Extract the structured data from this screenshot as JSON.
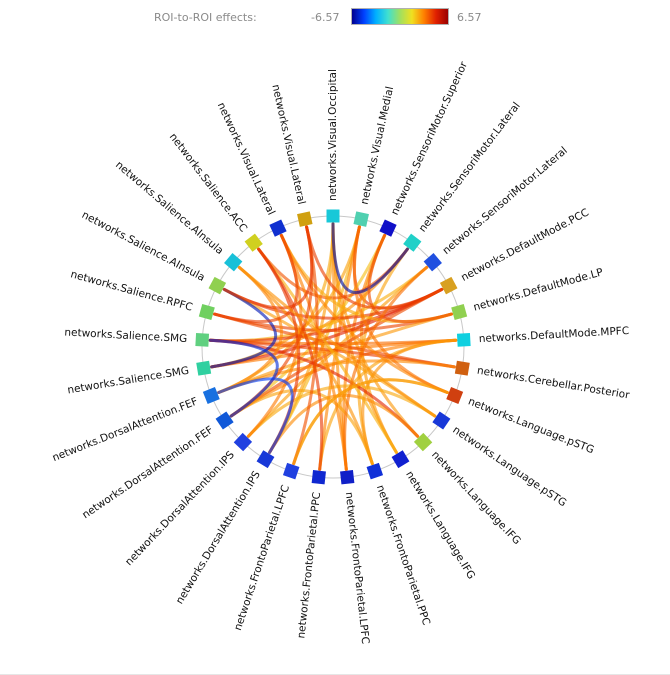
{
  "colorbar": {
    "title": "ROI-to-ROI effects:",
    "min_label": "-6.57",
    "max_label": "6.57",
    "min": -6.57,
    "max": 6.57,
    "stops": [
      "#00008f",
      "#0040ff",
      "#00b0ff",
      "#40e0d0",
      "#a0e060",
      "#f0e020",
      "#ff8000",
      "#e02000",
      "#9a0000"
    ]
  },
  "rois": [
    {
      "label": "networks.Visual.Occipital",
      "color": "#18c8d8"
    },
    {
      "label": "networks.Visual.Medial",
      "color": "#50d0b0"
    },
    {
      "label": "networks.SensoriMotor.Superior",
      "color": "#1010c8"
    },
    {
      "label": "networks.SensoriMotor.Lateral",
      "color": "#20d0c8"
    },
    {
      "label": "networks.SensoriMotor.Lateral",
      "color": "#2050e0"
    },
    {
      "label": "networks.DefaultMode.PCC",
      "color": "#d8a020"
    },
    {
      "label": "networks.DefaultMode.LP",
      "color": "#90d050"
    },
    {
      "label": "networks.DefaultMode.MPFC",
      "color": "#10d0e0"
    },
    {
      "label": "networks.Cerebellar.Posterior",
      "color": "#d06010"
    },
    {
      "label": "networks.Language.pSTG",
      "color": "#d04010"
    },
    {
      "label": "networks.Language.pSTG",
      "color": "#1838d8"
    },
    {
      "label": "networks.Language.IFG",
      "color": "#a0d040"
    },
    {
      "label": "networks.Language.IFG",
      "color": "#1020d0"
    },
    {
      "label": "networks.FrontoParietal.PPC",
      "color": "#1030d8"
    },
    {
      "label": "networks.FrontoParietal.LPFC",
      "color": "#1020c8"
    },
    {
      "label": "networks.FrontoParietal.PPC",
      "color": "#1028d0"
    },
    {
      "label": "networks.FrontoParietal.LPFC",
      "color": "#2040e0"
    },
    {
      "label": "networks.DorsalAttention.IPS",
      "color": "#1838d8"
    },
    {
      "label": "networks.DorsalAttention.IPS",
      "color": "#2040e0"
    },
    {
      "label": "networks.DorsalAttention.FEF",
      "color": "#1058d8"
    },
    {
      "label": "networks.DorsalAttention.FEF",
      "color": "#1870e0"
    },
    {
      "label": "networks.Salience.SMG",
      "color": "#30d0a0"
    },
    {
      "label": "networks.Salience.SMG",
      "color": "#60d080"
    },
    {
      "label": "networks.Salience.RPFC",
      "color": "#70d060"
    },
    {
      "label": "networks.Salience.AInsula",
      "color": "#90d050"
    },
    {
      "label": "networks.Salience.AInsula",
      "color": "#18c0d8"
    },
    {
      "label": "networks.Salience.ACC",
      "color": "#d0d020"
    },
    {
      "label": "networks.Visual.Lateral",
      "color": "#1030d0"
    },
    {
      "label": "networks.Visual.Lateral",
      "color": "#d0a010"
    }
  ],
  "connections": [
    {
      "from": 0,
      "to": 14,
      "value": 3.1
    },
    {
      "from": 0,
      "to": 17,
      "value": 2.8
    },
    {
      "from": 0,
      "to": 20,
      "value": 2.6
    },
    {
      "from": 0,
      "to": 12,
      "value": 3.0
    },
    {
      "from": 0,
      "to": 11,
      "value": 2.9
    },
    {
      "from": 1,
      "to": 17,
      "value": 2.4
    },
    {
      "from": 1,
      "to": 21,
      "value": 2.7
    },
    {
      "from": 1,
      "to": 15,
      "value": 3.2
    },
    {
      "from": 1,
      "to": 5,
      "value": 4.5
    },
    {
      "from": 2,
      "to": 19,
      "value": 2.2
    },
    {
      "from": 2,
      "to": 14,
      "value": 3.3
    },
    {
      "from": 2,
      "to": 12,
      "value": 2.9
    },
    {
      "from": 3,
      "to": 21,
      "value": 3.1
    },
    {
      "from": 3,
      "to": 13,
      "value": 2.7
    },
    {
      "from": 3,
      "to": 26,
      "value": 4.0
    },
    {
      "from": 4,
      "to": 22,
      "value": 2.5
    },
    {
      "from": 4,
      "to": 18,
      "value": 2.8
    },
    {
      "from": 5,
      "to": 22,
      "value": 4.7
    },
    {
      "from": 5,
      "to": 21,
      "value": 4.9
    },
    {
      "from": 5,
      "to": 28,
      "value": 4.4
    },
    {
      "from": 5,
      "to": 24,
      "value": 4.6
    },
    {
      "from": 5,
      "to": 19,
      "value": 4.2
    },
    {
      "from": 6,
      "to": 23,
      "value": 4.3
    },
    {
      "from": 6,
      "to": 20,
      "value": 2.9
    },
    {
      "from": 6,
      "to": 27,
      "value": 2.6
    },
    {
      "from": 7,
      "to": 21,
      "value": 3.4
    },
    {
      "from": 7,
      "to": 22,
      "value": 3.6
    },
    {
      "from": 7,
      "to": 19,
      "value": 3.3
    },
    {
      "from": 7,
      "to": 15,
      "value": 2.7
    },
    {
      "from": 7,
      "to": 13,
      "value": 3.0
    },
    {
      "from": 8,
      "to": 22,
      "value": 4.4
    },
    {
      "from": 8,
      "to": 23,
      "value": 4.2
    },
    {
      "from": 8,
      "to": 20,
      "value": 3.1
    },
    {
      "from": 9,
      "to": 16,
      "value": 2.9
    },
    {
      "from": 9,
      "to": 27,
      "value": 3.2
    },
    {
      "from": 10,
      "to": 24,
      "value": 2.8
    },
    {
      "from": 10,
      "to": 18,
      "value": 2.6
    },
    {
      "from": 11,
      "to": 22,
      "value": 4.8
    },
    {
      "from": 11,
      "to": 17,
      "value": 3.1
    },
    {
      "from": 12,
      "to": 26,
      "value": 2.5
    },
    {
      "from": 13,
      "to": 25,
      "value": 3.0
    },
    {
      "from": 13,
      "to": 19,
      "value": 2.7
    },
    {
      "from": 14,
      "to": 27,
      "value": 3.3
    },
    {
      "from": 15,
      "to": 26,
      "value": 4.5
    },
    {
      "from": 16,
      "to": 28,
      "value": 4.1
    },
    {
      "from": 17,
      "to": 26,
      "value": 4.6
    },
    {
      "from": 18,
      "to": 27,
      "value": 3.4
    },
    {
      "from": 19,
      "to": 28,
      "value": 4.3
    },
    {
      "from": 20,
      "to": 25,
      "value": 3.2
    },
    {
      "from": 21,
      "to": 24,
      "value": -6.0
    },
    {
      "from": 22,
      "to": 19,
      "value": -5.5
    },
    {
      "from": 23,
      "to": 27,
      "value": 4.4
    },
    {
      "from": 24,
      "to": 28,
      "value": 4.5
    },
    {
      "from": 25,
      "to": 10,
      "value": 3.0
    },
    {
      "from": 1,
      "to": 9,
      "value": 3.5
    },
    {
      "from": 0,
      "to": 3,
      "value": -6.2
    },
    {
      "from": 2,
      "to": 6,
      "value": 4.2
    },
    {
      "from": 4,
      "to": 14,
      "value": 3.6
    },
    {
      "from": 16,
      "to": 9,
      "value": 2.7
    },
    {
      "from": 20,
      "to": 17,
      "value": -5.0
    }
  ]
}
